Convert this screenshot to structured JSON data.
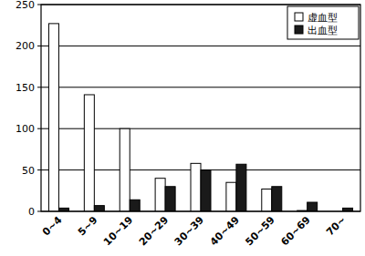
{
  "chart_data": {
    "type": "bar",
    "categories": [
      "0~4",
      "5~9",
      "10~19",
      "20~29",
      "30~39",
      "40~49",
      "50~59",
      "60~69",
      "70~"
    ],
    "series": [
      {
        "name": "虚血型",
        "color": "#ffffff",
        "values": [
          227,
          141,
          100,
          40,
          58,
          35,
          27,
          1,
          0
        ]
      },
      {
        "name": "出血型",
        "color": "#1a1a1a",
        "values": [
          4,
          7,
          14,
          30,
          50,
          57,
          30,
          11,
          4
        ]
      }
    ],
    "ylim": [
      0,
      250
    ],
    "yticks": [
      0,
      50,
      100,
      150,
      200,
      250
    ],
    "grid": true,
    "legend": "upper right"
  }
}
